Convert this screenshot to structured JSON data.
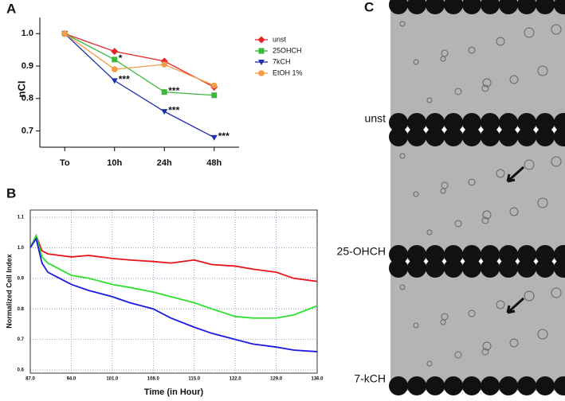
{
  "chart_data": [
    {
      "type": "line",
      "panel": "A",
      "y_label": "nCI",
      "categories": [
        "To",
        "10h",
        "24h",
        "48h"
      ],
      "series": [
        {
          "name": "unst",
          "color": "#e8262a",
          "marker": "diamond",
          "values": [
            1.0,
            0.945,
            0.915,
            0.835
          ]
        },
        {
          "name": "25OHCH",
          "color": "#3cb83c",
          "marker": "square",
          "values": [
            1.0,
            0.92,
            0.82,
            0.81
          ]
        },
        {
          "name": "7kCH",
          "color": "#1c2fa8",
          "marker": "triangle-down",
          "values": [
            1.0,
            0.855,
            0.76,
            0.68
          ]
        },
        {
          "name": "EtOH 1%",
          "color": "#f59a45",
          "marker": "circle",
          "values": [
            1.0,
            0.89,
            0.905,
            0.84
          ]
        }
      ],
      "annotations": [
        {
          "text": "*",
          "series": 1,
          "index": 1
        },
        {
          "text": "***",
          "series": 2,
          "index": 1
        },
        {
          "text": "***",
          "series": 1,
          "index": 2
        },
        {
          "text": "***",
          "series": 2,
          "index": 2
        },
        {
          "text": "***",
          "series": 2,
          "index": 3
        }
      ],
      "ylim": [
        0.65,
        1.03
      ],
      "yticks": [
        0.7,
        0.8,
        0.9,
        {
          "value": 1,
          "label": "1.0"
        }
      ],
      "legend": "upper right"
    },
    {
      "type": "line",
      "panel": "B",
      "y_label": "Normalized Cell Index",
      "x_label": "Time (in Hour)",
      "x": [
        87,
        88,
        89,
        90,
        92,
        94,
        97,
        101,
        104,
        108,
        111,
        115,
        118,
        122,
        125,
        129,
        132,
        136
      ],
      "series": [
        {
          "color": "#e8141a",
          "values": [
            1.0,
            1.04,
            0.99,
            0.98,
            0.975,
            0.97,
            0.975,
            0.965,
            0.96,
            0.955,
            0.95,
            0.96,
            0.945,
            0.94,
            0.93,
            0.92,
            0.9,
            0.89
          ]
        },
        {
          "color": "#2ee02e",
          "values": [
            1.0,
            1.04,
            0.97,
            0.95,
            0.93,
            0.91,
            0.9,
            0.88,
            0.87,
            0.855,
            0.84,
            0.82,
            0.8,
            0.775,
            0.77,
            0.77,
            0.78,
            0.81
          ]
        },
        {
          "color": "#1a1ae0",
          "values": [
            1.0,
            1.03,
            0.95,
            0.92,
            0.9,
            0.88,
            0.86,
            0.84,
            0.82,
            0.8,
            0.77,
            0.74,
            0.72,
            0.7,
            0.685,
            0.675,
            0.665,
            0.66
          ]
        }
      ],
      "xlim": [
        87,
        136
      ],
      "xticks": [
        {
          "value": 87,
          "label": "87.0"
        },
        {
          "value": 94,
          "label": "94.0"
        },
        {
          "value": 101,
          "label": "101.0"
        },
        {
          "value": 108,
          "label": "108.0"
        },
        {
          "value": 115,
          "label": "115.0"
        },
        {
          "value": 122,
          "label": "122.0"
        },
        {
          "value": 129,
          "label": "129.0"
        },
        {
          "value": 136,
          "label": "136.0"
        }
      ],
      "ylim": [
        0.6,
        1.1
      ],
      "yticks": [
        0.6,
        0.7,
        0.8,
        0.9,
        {
          "value": 1,
          "label": "1.0"
        },
        1.1
      ],
      "grid": true
    }
  ],
  "micrographs": {
    "panel": "C",
    "labels": [
      "unst",
      "25-OHCH",
      "7-kCH"
    ]
  }
}
